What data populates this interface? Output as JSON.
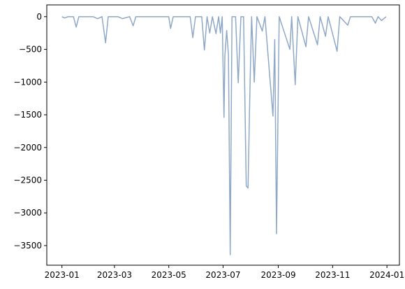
{
  "chart_data": {
    "type": "line",
    "title": "",
    "xlabel": "",
    "ylabel": "",
    "xlim": [
      "2022-12-15",
      "2024-01-15"
    ],
    "ylim": [
      -3800,
      180
    ],
    "grid": false,
    "legend": "none",
    "x_ticks": [
      "2023-01",
      "2023-03",
      "2023-05",
      "2023-07",
      "2023-09",
      "2023-11",
      "2024-01"
    ],
    "y_ticks": [
      0,
      -500,
      -1000,
      -1500,
      -2000,
      -2500,
      -3000,
      -3500
    ],
    "series": [
      {
        "color": "#8fa8c8",
        "points": [
          [
            "2023-01-01",
            0
          ],
          [
            "2023-01-04",
            -20
          ],
          [
            "2023-01-08",
            0
          ],
          [
            "2023-01-14",
            0
          ],
          [
            "2023-01-17",
            -160
          ],
          [
            "2023-01-20",
            0
          ],
          [
            "2023-02-05",
            0
          ],
          [
            "2023-02-10",
            -30
          ],
          [
            "2023-02-15",
            0
          ],
          [
            "2023-02-19",
            -400
          ],
          [
            "2023-02-22",
            0
          ],
          [
            "2023-03-05",
            0
          ],
          [
            "2023-03-10",
            -30
          ],
          [
            "2023-03-18",
            0
          ],
          [
            "2023-03-22",
            -140
          ],
          [
            "2023-03-25",
            0
          ],
          [
            "2023-05-01",
            0
          ],
          [
            "2023-05-03",
            -180
          ],
          [
            "2023-05-06",
            0
          ],
          [
            "2023-05-25",
            0
          ],
          [
            "2023-05-28",
            -320
          ],
          [
            "2023-05-31",
            0
          ],
          [
            "2023-06-07",
            0
          ],
          [
            "2023-06-10",
            -510
          ],
          [
            "2023-06-13",
            0
          ],
          [
            "2023-06-16",
            -250
          ],
          [
            "2023-06-19",
            0
          ],
          [
            "2023-06-23",
            -260
          ],
          [
            "2023-06-26",
            0
          ],
          [
            "2023-06-28",
            -250
          ],
          [
            "2023-06-30",
            0
          ],
          [
            "2023-07-02",
            -1540
          ],
          [
            "2023-07-03",
            -600
          ],
          [
            "2023-07-05",
            -210
          ],
          [
            "2023-07-07",
            -580
          ],
          [
            "2023-07-09",
            -3640
          ],
          [
            "2023-07-11",
            0
          ],
          [
            "2023-07-15",
            0
          ],
          [
            "2023-07-18",
            -1010
          ],
          [
            "2023-07-21",
            0
          ],
          [
            "2023-07-24",
            0
          ],
          [
            "2023-07-27",
            -2590
          ],
          [
            "2023-07-29",
            -2620
          ],
          [
            "2023-07-31",
            -1200
          ],
          [
            "2023-08-02",
            0
          ],
          [
            "2023-08-05",
            -1000
          ],
          [
            "2023-08-08",
            0
          ],
          [
            "2023-08-14",
            -220
          ],
          [
            "2023-08-17",
            0
          ],
          [
            "2023-08-26",
            -1520
          ],
          [
            "2023-08-28",
            -350
          ],
          [
            "2023-08-30",
            -3320
          ],
          [
            "2023-09-02",
            0
          ],
          [
            "2023-09-14",
            -500
          ],
          [
            "2023-09-16",
            0
          ],
          [
            "2023-09-20",
            -1040
          ],
          [
            "2023-09-23",
            0
          ],
          [
            "2023-10-02",
            -460
          ],
          [
            "2023-10-05",
            0
          ],
          [
            "2023-10-15",
            -430
          ],
          [
            "2023-10-18",
            0
          ],
          [
            "2023-10-24",
            -300
          ],
          [
            "2023-10-27",
            0
          ],
          [
            "2023-11-06",
            -530
          ],
          [
            "2023-11-09",
            0
          ],
          [
            "2023-11-18",
            -130
          ],
          [
            "2023-11-21",
            0
          ],
          [
            "2023-12-15",
            0
          ],
          [
            "2023-12-19",
            -100
          ],
          [
            "2023-12-22",
            0
          ],
          [
            "2023-12-26",
            -60
          ],
          [
            "2023-12-31",
            0
          ]
        ]
      }
    ]
  }
}
